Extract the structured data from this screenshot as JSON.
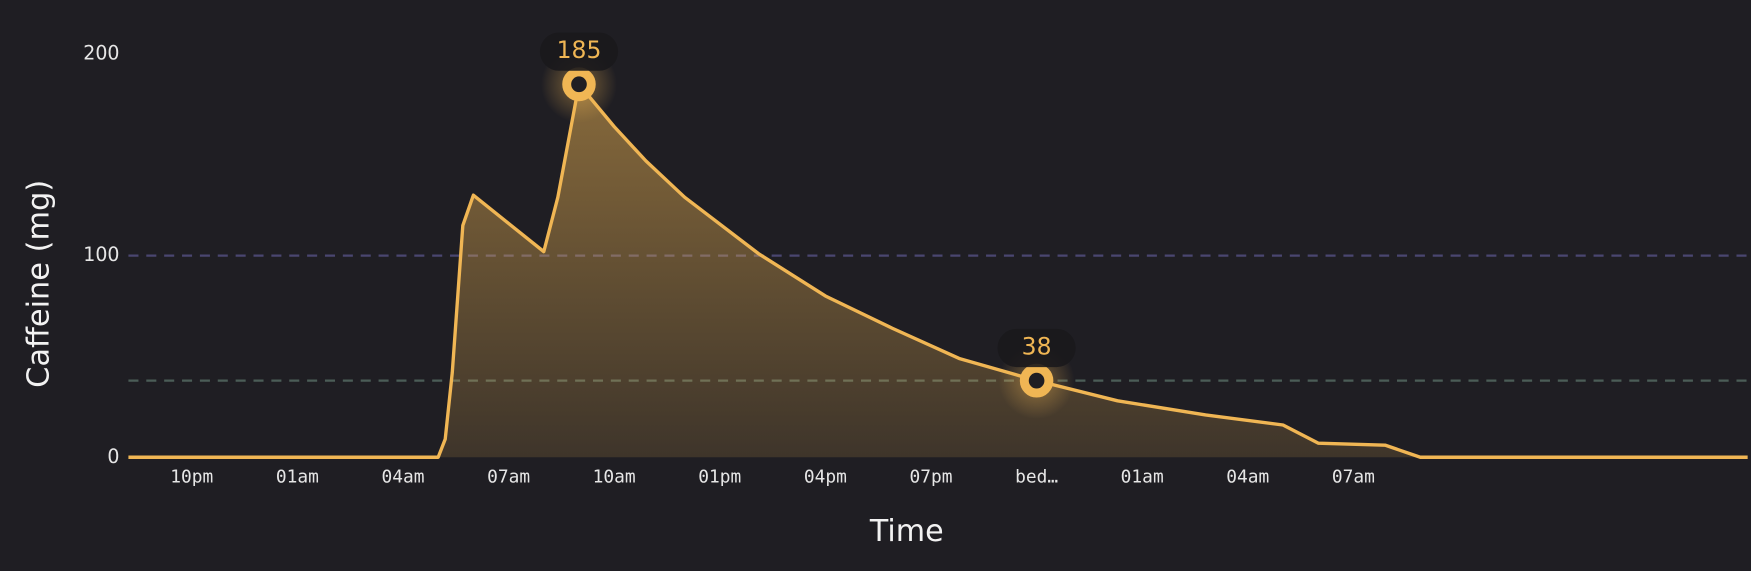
{
  "chart_data": {
    "type": "area",
    "ylabel": "Caffeine (mg)",
    "xlabel": "Time",
    "x": [
      -1.8,
      7.0,
      7.2,
      7.4,
      7.7,
      8.0,
      9.0,
      10.0,
      10.4,
      11.0,
      12.0,
      12.9,
      14.0,
      16.1,
      18.0,
      19.9,
      21.8,
      24.0,
      26.3,
      28.8,
      31.0,
      32.0,
      33.9,
      34.9,
      44.2
    ],
    "values": [
      0,
      0,
      9,
      42,
      115,
      130,
      116,
      102,
      129,
      185,
      164,
      147,
      129,
      101,
      80,
      64,
      49,
      38,
      28,
      21,
      16,
      7,
      6,
      0,
      0
    ],
    "color": "#f0b654",
    "xlim": [
      -1.8,
      44.2
    ],
    "xticks": [
      {
        "value": 0,
        "label": "10pm"
      },
      {
        "value": 3,
        "label": "01am"
      },
      {
        "value": 6,
        "label": "04am"
      },
      {
        "value": 9,
        "label": "07am"
      },
      {
        "value": 12,
        "label": "10am"
      },
      {
        "value": 15,
        "label": "01pm"
      },
      {
        "value": 18,
        "label": "04pm"
      },
      {
        "value": 21,
        "label": "07pm"
      },
      {
        "value": 24,
        "label": "bed…"
      },
      {
        "value": 27,
        "label": "01am"
      },
      {
        "value": 30,
        "label": "04am"
      },
      {
        "value": 33,
        "label": "07am"
      }
    ],
    "ylim": [
      0,
      200
    ],
    "yticks": [
      0,
      100,
      200
    ],
    "reference_lines": [
      {
        "value": 100,
        "color": "#4a4670"
      },
      {
        "value": 38,
        "color": "#4b5d57"
      }
    ],
    "annotations": [
      {
        "x": 11.0,
        "y": 185
      },
      {
        "x": 24.0,
        "y": 38
      }
    ]
  }
}
